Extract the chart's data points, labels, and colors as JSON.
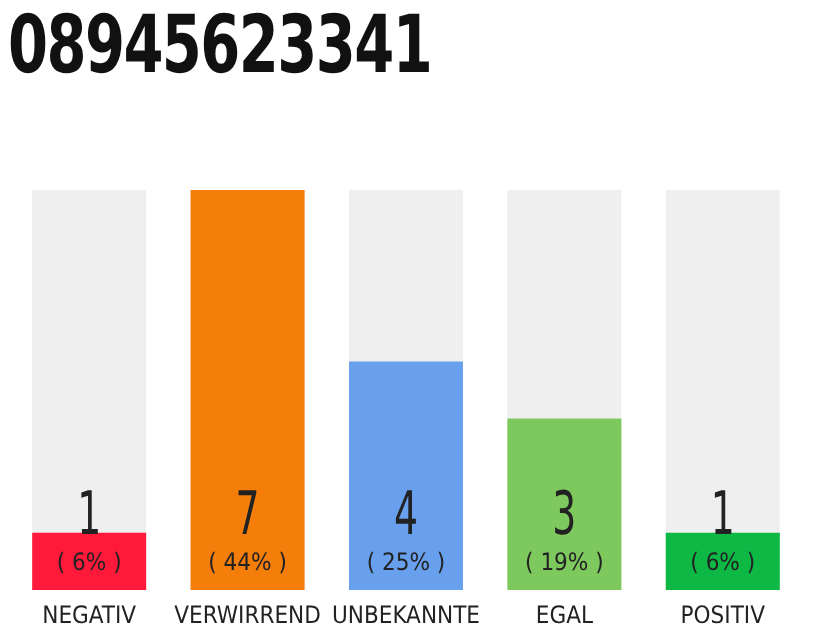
{
  "chart_data": {
    "type": "bar",
    "title": "08945623341",
    "categories": [
      "NEGATIV",
      "VERWIRREND",
      "UNBEKANNTE",
      "EGAL",
      "POSITIV"
    ],
    "values": [
      1,
      7,
      4,
      3,
      1
    ],
    "colors": [
      "#ff1a3c",
      "#f57d0a",
      "#68a0ee",
      "#7dc95e",
      "#0db845"
    ],
    "data_labels": true,
    "annotations": [
      {
        "text": "( 6% )",
        "x": "NEGATIV",
        "y": 0
      },
      {
        "text": "( 44% )",
        "x": "VERWIRREND",
        "y": 0
      },
      {
        "text": "( 25% )",
        "x": "UNBEKANNTE",
        "y": 0
      },
      {
        "text": "( 19% )",
        "x": "EGAL",
        "y": 0
      },
      {
        "text": "( 6% )",
        "x": "POSITIV",
        "y": 0
      }
    ]
  }
}
